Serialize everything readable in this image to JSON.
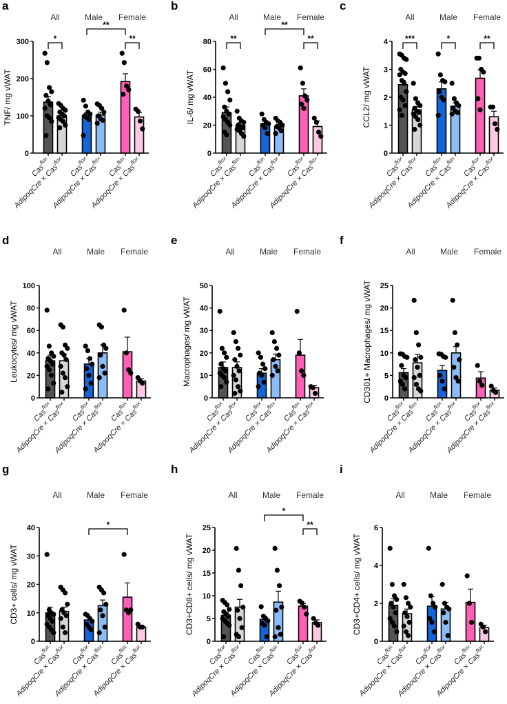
{
  "colors": [
    "#555555",
    "#d6d6d6",
    "#1565d8",
    "#8cbcf7",
    "#ff5fb5",
    "#fcc9e4"
  ],
  "groups": [
    "All",
    "Male",
    "Female"
  ],
  "x_labels": [
    {
      "main": "Cas",
      "sup": "flox"
    },
    {
      "main": "AdipoqCre × Cas",
      "sup": "flox"
    }
  ],
  "chart_data": [
    {
      "panel": "a",
      "type": "bar",
      "ylabel": "TNF/ mg vWAT",
      "ylim": [
        0,
        300
      ],
      "yticks": [
        0,
        100,
        200,
        300
      ],
      "means": [
        137,
        100,
        100,
        102,
        192,
        97
      ],
      "sem": [
        15,
        6,
        8,
        8,
        21,
        12
      ],
      "points": [
        [
          268,
          243,
          176,
          165,
          155,
          140,
          130,
          120,
          100,
          95,
          85,
          47
        ],
        [
          133,
          128,
          120,
          115,
          110,
          105,
          100,
          95,
          90,
          85,
          75,
          68
        ],
        [
          142,
          126,
          110,
          105,
          100,
          95,
          90,
          47
        ],
        [
          132,
          128,
          120,
          110,
          100,
          92,
          88,
          80
        ],
        [
          268,
          243,
          180,
          170,
          158
        ],
        [
          118,
          112,
          86,
          65
        ]
      ],
      "significance": [
        {
          "bars": [
            0,
            1
          ],
          "label": "*",
          "level": 0
        },
        {
          "bars": [
            2,
            4
          ],
          "label": "**",
          "level": 1
        },
        {
          "bars": [
            4,
            5
          ],
          "label": "**",
          "level": 0
        }
      ]
    },
    {
      "panel": "b",
      "type": "bar",
      "ylabel": "IL-6/ mg vWAT",
      "ylim": [
        0,
        80
      ],
      "yticks": [
        0,
        20,
        40,
        60,
        80
      ],
      "means": [
        29,
        20,
        21,
        19,
        41,
        19
      ],
      "sem": [
        4,
        2,
        2,
        1.5,
        5,
        4
      ],
      "points": [
        [
          61,
          50,
          44,
          38,
          33,
          30,
          28,
          26,
          24,
          22,
          20,
          15,
          13
        ],
        [
          30,
          25,
          23,
          22,
          20,
          19,
          18,
          17,
          16,
          14,
          12
        ],
        [
          28,
          24,
          22,
          21,
          20,
          18,
          14
        ],
        [
          25,
          23,
          22,
          20,
          19,
          18,
          16,
          14
        ],
        [
          61,
          50,
          41,
          38,
          35,
          32
        ],
        [
          25,
          22,
          15,
          12
        ]
      ],
      "significance": [
        {
          "bars": [
            0,
            1
          ],
          "label": "**",
          "level": 0
        },
        {
          "bars": [
            2,
            4
          ],
          "label": "**",
          "level": 1
        },
        {
          "bars": [
            4,
            5
          ],
          "label": "**",
          "level": 0
        }
      ]
    },
    {
      "panel": "c",
      "type": "bar",
      "ylabel": "CCL2/ mg vWAT",
      "ylim": [
        0,
        4
      ],
      "yticks": [
        0,
        1,
        2,
        3,
        4
      ],
      "means": [
        2.45,
        1.55,
        2.3,
        1.68,
        2.68,
        1.3
      ],
      "sem": [
        0.15,
        0.12,
        0.25,
        0.12,
        0.3,
        0.2
      ],
      "points": [
        [
          3.55,
          3.5,
          3.4,
          3.35,
          3.0,
          2.9,
          2.85,
          2.8,
          2.6,
          2.5,
          2.2,
          2.0,
          1.9,
          1.7,
          1.55,
          1.35
        ],
        [
          2.5,
          1.95,
          1.8,
          1.7,
          1.6,
          1.5,
          1.45,
          1.4,
          1.3,
          1.2,
          1.0,
          0.85
        ],
        [
          3.55,
          2.8,
          2.6,
          2.55,
          2.2,
          2.0,
          1.9,
          1.35
        ],
        [
          2.5,
          1.95,
          1.8,
          1.7,
          1.6,
          1.5,
          1.45,
          1.4
        ],
        [
          3.4,
          3.4,
          3.0,
          2.9,
          1.95,
          1.55
        ],
        [
          1.65,
          1.65,
          1.05,
          0.85
        ]
      ],
      "significance": [
        {
          "bars": [
            0,
            1
          ],
          "label": "***",
          "level": 0
        },
        {
          "bars": [
            2,
            3
          ],
          "label": "*",
          "level": 0
        },
        {
          "bars": [
            4,
            5
          ],
          "label": "**",
          "level": 0
        }
      ]
    },
    {
      "panel": "d",
      "type": "bar",
      "ylabel": "Leukocytes/ mg vWAT",
      "ylim": [
        0,
        100
      ],
      "yticks": [
        0,
        20,
        40,
        60,
        80,
        100
      ],
      "means": [
        33,
        33,
        30,
        40,
        41,
        15
      ],
      "sem": [
        5,
        6,
        5,
        7,
        13,
        2
      ],
      "points": [
        [
          78,
          46,
          40,
          37,
          35,
          33,
          30,
          28,
          25,
          20,
          13,
          8
        ],
        [
          65,
          63,
          47,
          44,
          40,
          38,
          34,
          28,
          22,
          18,
          10,
          5
        ],
        [
          46,
          42,
          35,
          30,
          26,
          20,
          13,
          8
        ],
        [
          65,
          63,
          47,
          44,
          38,
          28,
          22,
          18
        ],
        [
          78,
          40,
          25,
          22
        ],
        [
          18,
          15,
          13
        ]
      ],
      "significance": []
    },
    {
      "panel": "e",
      "type": "bar",
      "ylabel": "Macrophages/ mg vWAT",
      "ylim": [
        0,
        50
      ],
      "yticks": [
        0,
        10,
        20,
        30,
        40,
        50
      ],
      "means": [
        13.5,
        13.5,
        11,
        17,
        19,
        4.5
      ],
      "sem": [
        2.5,
        2.5,
        2,
        2.5,
        7,
        1
      ],
      "points": [
        [
          38.5,
          22,
          20,
          18,
          15,
          13,
          12,
          11,
          10,
          9,
          7,
          5
        ],
        [
          29,
          25,
          22,
          19,
          17,
          14,
          12,
          10,
          8,
          5,
          3,
          2
        ],
        [
          20,
          18,
          15,
          13,
          11,
          10,
          7,
          5
        ],
        [
          29,
          25,
          22,
          19,
          17,
          14,
          12,
          10
        ],
        [
          38.5,
          20,
          12,
          10
        ],
        [
          5,
          4.5,
          2
        ]
      ],
      "significance": []
    },
    {
      "panel": "f",
      "type": "bar",
      "ylabel": "CD301+ Macrophages/ mg vWAT",
      "ylim": [
        0,
        25
      ],
      "yticks": [
        0,
        5,
        10,
        15,
        20,
        25
      ],
      "means": [
        5.6,
        7.8,
        6.1,
        10,
        4.4,
        1.7
      ],
      "sem": [
        0.9,
        1.9,
        1.1,
        1.4,
        1.4,
        0.5
      ],
      "points": [
        [
          9.8,
          9.7,
          9.2,
          9.0,
          7.2,
          5.0,
          4.5,
          3.7,
          3.0,
          2.0
        ],
        [
          21.7,
          14.5,
          11.8,
          9.0,
          8.5,
          6.8,
          5.0,
          4.5,
          3.0,
          2.0,
          1.5
        ],
        [
          9.8,
          9.7,
          9.2,
          9.0,
          5.0,
          3.7,
          2.0
        ],
        [
          21.7,
          14.5,
          11.8,
          8.5,
          6.8,
          4.5,
          3.7
        ],
        [
          7.2,
          3.7,
          2.8
        ],
        [
          2.6,
          1.6,
          1.2
        ]
      ],
      "significance": []
    },
    {
      "panel": "g",
      "type": "bar",
      "ylabel": "CD3+ cells/ mg vWAT",
      "ylim": [
        0,
        40
      ],
      "yticks": [
        0,
        10,
        20,
        30,
        40
      ],
      "means": [
        10,
        10.5,
        7.5,
        12.5,
        15.5,
        5
      ],
      "sem": [
        2,
        1.5,
        1,
        2,
        5,
        0.5
      ],
      "points": [
        [
          30.5,
          11,
          10,
          9.5,
          9,
          8,
          7,
          6,
          5,
          4,
          3
        ],
        [
          19,
          18,
          17,
          13,
          11,
          10,
          9,
          8,
          5,
          3
        ],
        [
          9.5,
          9,
          8,
          7,
          6,
          5,
          4
        ],
        [
          19,
          18,
          17,
          13,
          11,
          9,
          5,
          3
        ],
        [
          30.5,
          11,
          10,
          11
        ],
        [
          6,
          5,
          5
        ]
      ],
      "significance": [
        {
          "bars": [
            2,
            4
          ],
          "label": "*",
          "level": 0
        }
      ]
    },
    {
      "panel": "h",
      "type": "bar",
      "ylabel": "CD3+CD8+ cells/ mg vWAT",
      "ylim": [
        0,
        25
      ],
      "yticks": [
        0,
        5,
        10,
        15,
        20,
        25
      ],
      "means": [
        5.7,
        7.5,
        4.8,
        8.6,
        7.7,
        4.1
      ],
      "sem": [
        0.6,
        1.7,
        0.6,
        2.4,
        0.6,
        0.6
      ],
      "points": [
        [
          9,
          8.5,
          8,
          7,
          6.5,
          6,
          5.5,
          5,
          4.5,
          4,
          3.5,
          1
        ],
        [
          20.4,
          15.6,
          12.2,
          7.5,
          6.8,
          5,
          3,
          1.5,
          1
        ],
        [
          7.6,
          5.5,
          5,
          4.5,
          4,
          3.5,
          1
        ],
        [
          20.4,
          15.6,
          12.2,
          7.5,
          6.8,
          3,
          1.5,
          1
        ],
        [
          8.8,
          8.4,
          7.5,
          6
        ],
        [
          5,
          4,
          3.5
        ]
      ],
      "significance": [
        {
          "bars": [
            2,
            4
          ],
          "label": "*",
          "level": 1
        },
        {
          "bars": [
            4,
            5
          ],
          "label": "**",
          "level": 0
        }
      ]
    },
    {
      "panel": "i",
      "type": "bar",
      "ylabel": "CD3+CD4+ cells/ mg vWAT",
      "ylim": [
        0,
        6
      ],
      "yticks": [
        0,
        2,
        4,
        6
      ],
      "means": [
        1.9,
        1.45,
        1.85,
        1.7,
        2.05,
        0.72
      ],
      "sem": [
        0.35,
        0.25,
        0.5,
        0.35,
        0.7,
        0.12
      ],
      "points": [
        [
          4.9,
          3.0,
          2.4,
          2.2,
          2.0,
          1.8,
          1.5,
          1.2,
          1.0,
          0.8,
          0.5
        ],
        [
          3.0,
          2.3,
          2.0,
          1.8,
          1.5,
          1.3,
          1.0,
          0.8,
          0.5,
          0.3
        ],
        [
          4.9,
          2.4,
          2.0,
          1.8,
          1.2,
          1.0,
          0.5
        ],
        [
          3.0,
          2.0,
          1.8,
          1.7,
          1.5,
          1.0,
          0.3
        ],
        [
          3.45,
          2.0,
          1.0
        ],
        [
          0.9,
          0.75,
          0.5
        ]
      ],
      "significance": []
    }
  ]
}
